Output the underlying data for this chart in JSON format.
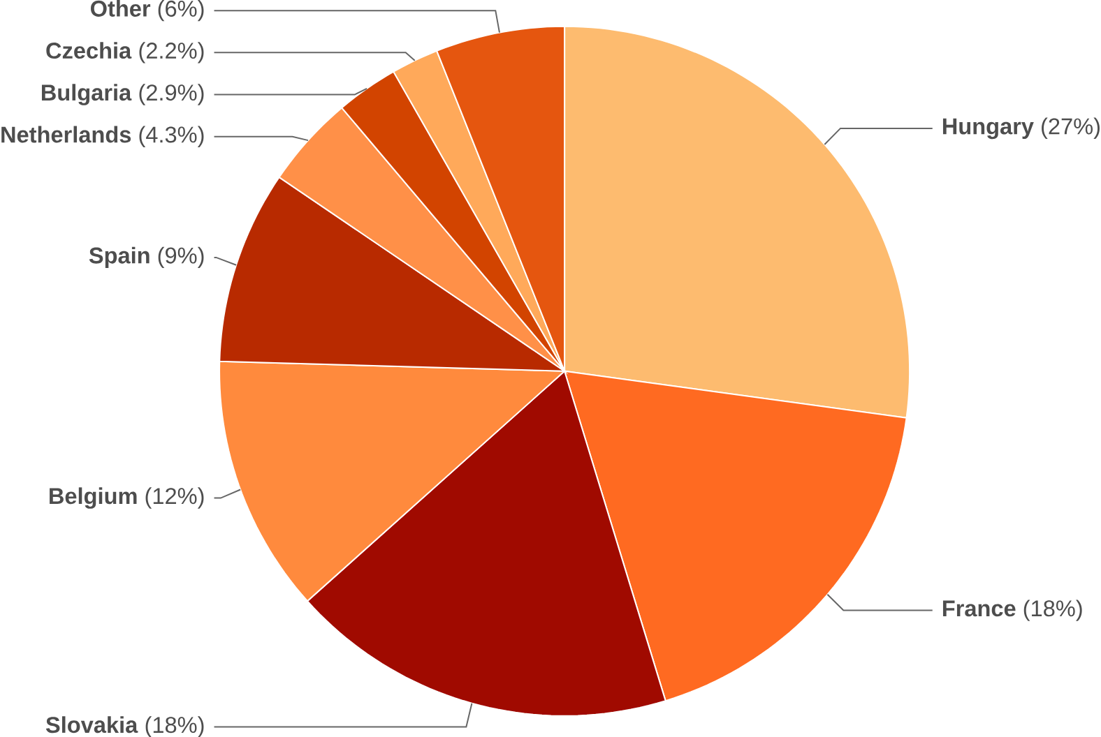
{
  "chart_data": {
    "type": "pie",
    "categories": [
      "**Hungary** (27%)",
      "**France** (18%)",
      "**Slovakia** (18%)",
      "**Belgium** (12%)",
      "**Spain** (9%)",
      "**Netherlands** (4.3%)",
      "**Bulgaria** (2.9%)",
      "**Czechia** (2.2%)",
      "**Other** (6%)"
    ],
    "values": [
      27,
      18,
      18,
      12,
      9,
      4.3,
      2.9,
      2.2,
      6
    ],
    "colors": [
      "#fdbb6f",
      "#ff6a21",
      "#a00a00",
      "#ff8a3d",
      "#b82a00",
      "#ff9048",
      "#d24400",
      "#ffa95a",
      "#e5560f"
    ]
  }
}
